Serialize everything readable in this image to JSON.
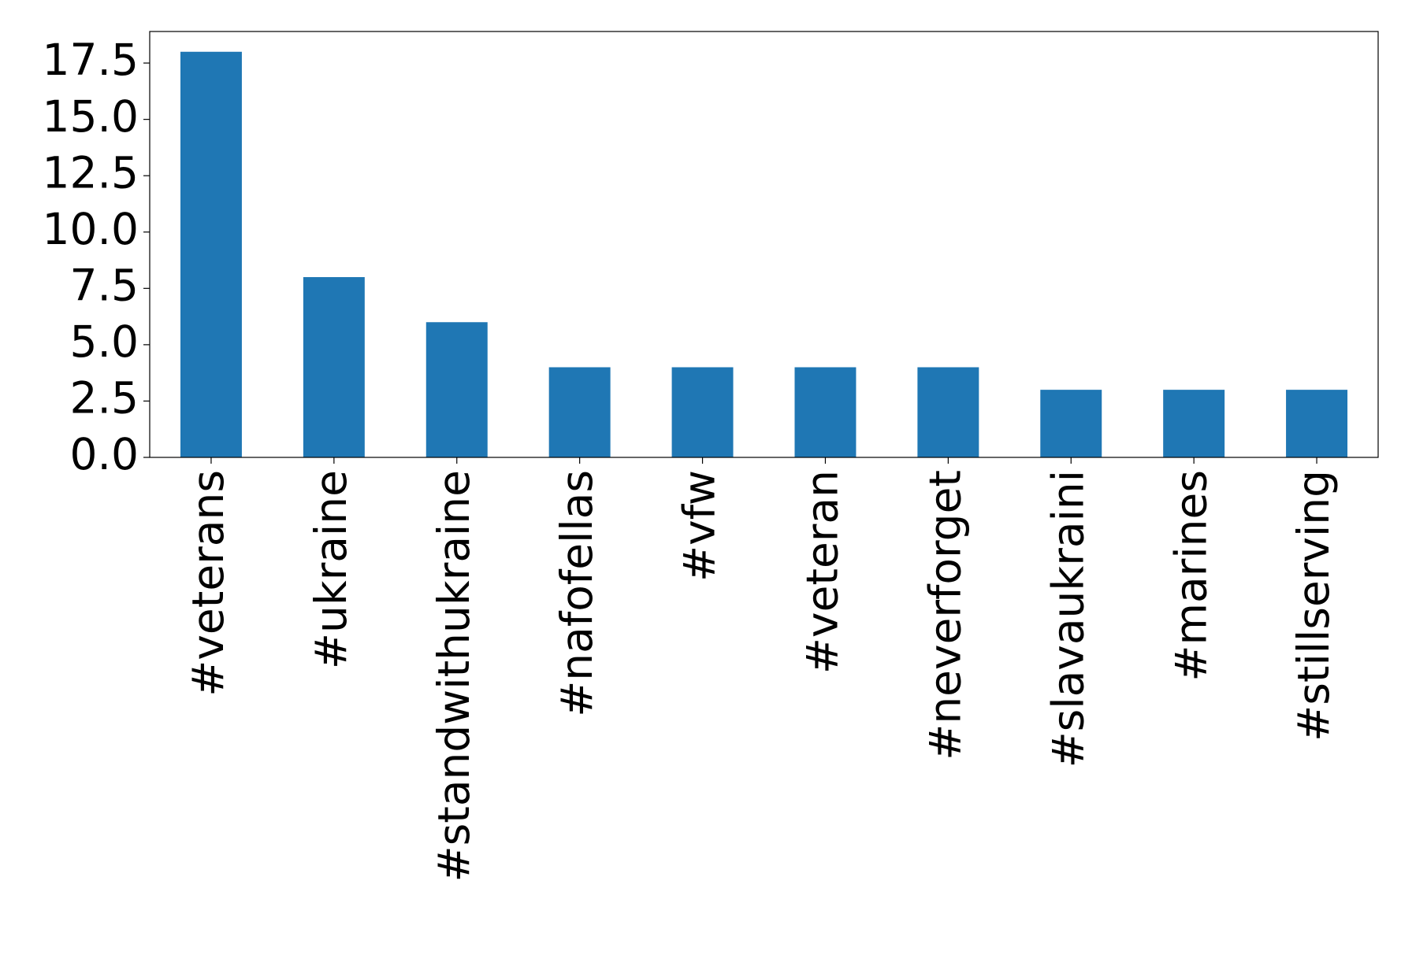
{
  "chart_data": {
    "type": "bar",
    "categories": [
      "#veterans",
      "#ukraine",
      "#standwithukraine",
      "#nafofellas",
      "#vfw",
      "#veteran",
      "#neverforget",
      "#slavaukraini",
      "#marines",
      "#stillserving"
    ],
    "values": [
      18,
      8,
      6,
      4,
      4,
      4,
      4,
      3,
      3,
      3
    ],
    "color": "#1f77b4",
    "ylim": [
      0,
      18.9
    ],
    "yticks": [
      {
        "value": 0,
        "label": "0.0"
      },
      2.5,
      {
        "value": 5,
        "label": "5.0"
      },
      7.5,
      {
        "value": 10,
        "label": "10.0"
      },
      12.5,
      {
        "value": 15,
        "label": "15.0"
      },
      17.5
    ],
    "grid": false
  }
}
